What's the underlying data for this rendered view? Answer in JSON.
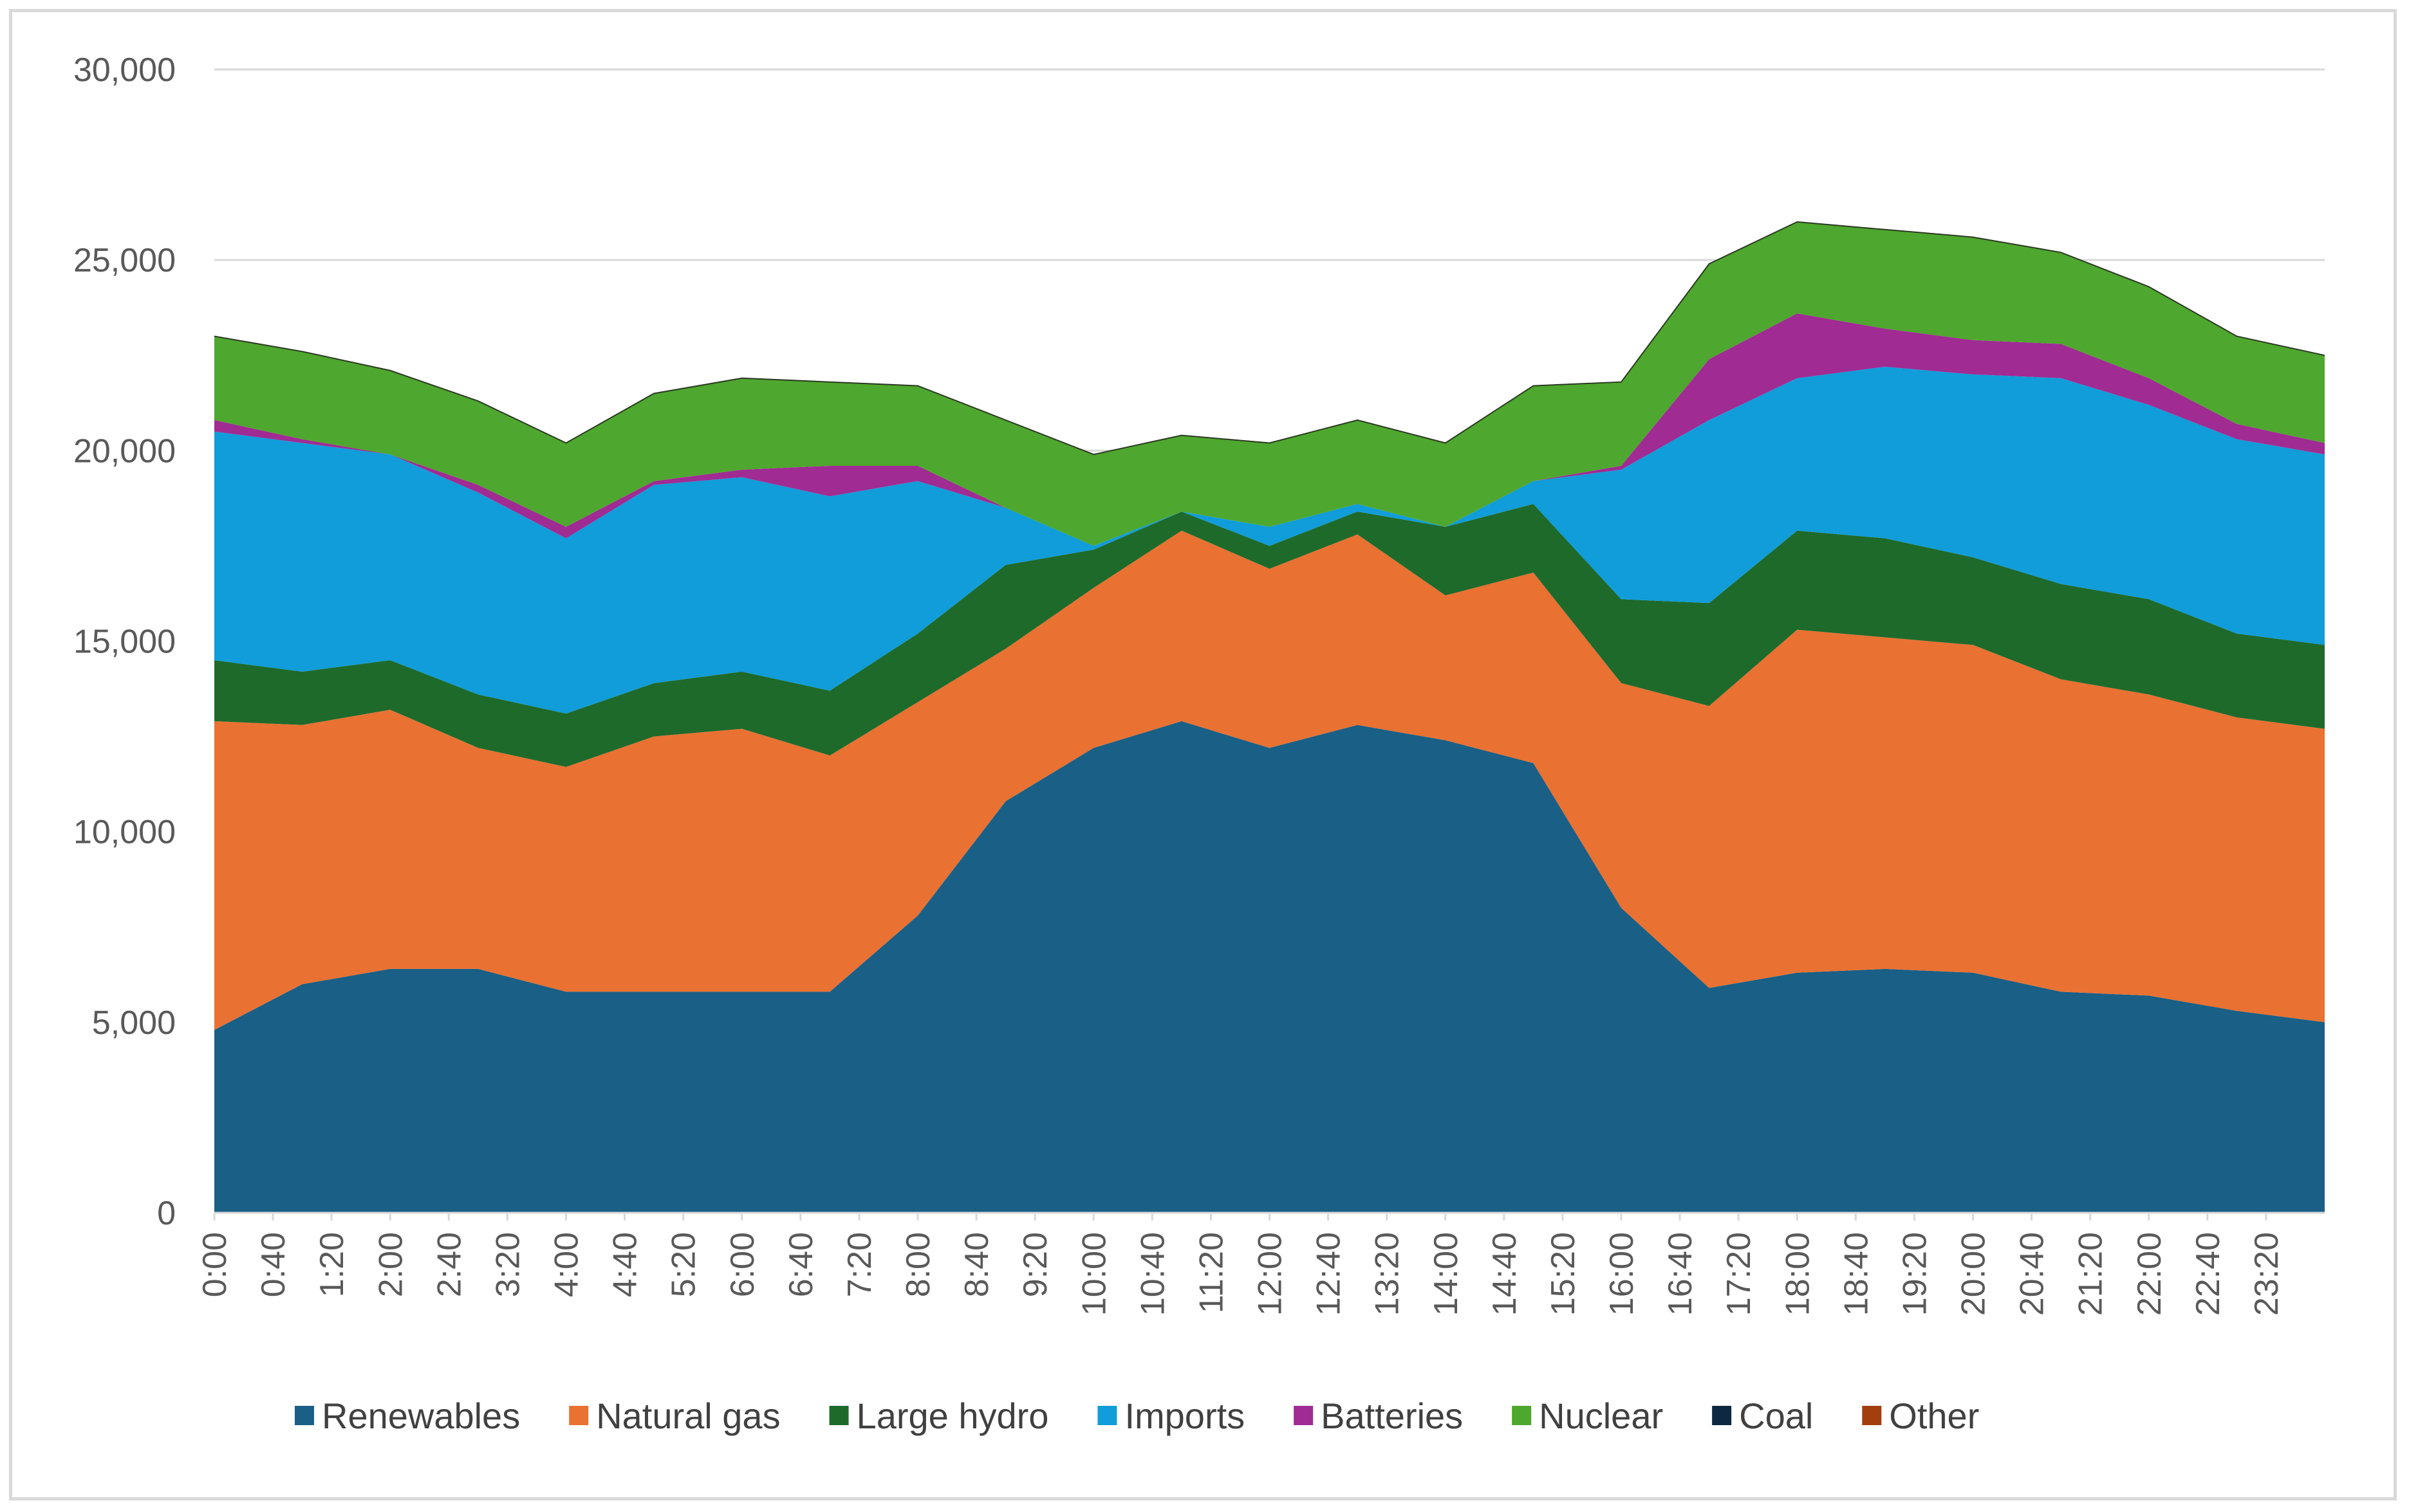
{
  "chart_data": {
    "type": "area",
    "stacked": true,
    "title": "",
    "xlabel": "",
    "ylabel": "",
    "ylim": [
      0,
      30000
    ],
    "y_ticks": [
      0,
      5000,
      10000,
      15000,
      20000,
      25000,
      30000
    ],
    "y_tick_labels": [
      "0",
      "5,000",
      "10,000",
      "15,000",
      "20,000",
      "25,000",
      "30,000"
    ],
    "grid": "horizontal",
    "legend_position": "bottom",
    "x_tick_labels": [
      "0:00",
      "0:40",
      "1:20",
      "2:00",
      "2:40",
      "3:20",
      "4:00",
      "4:40",
      "5:20",
      "6:00",
      "6:40",
      "7:20",
      "8:00",
      "8:40",
      "9:20",
      "10:00",
      "10:40",
      "11:20",
      "12:00",
      "12:40",
      "13:20",
      "14:00",
      "14:40",
      "15:20",
      "16:00",
      "16:40",
      "17:20",
      "18:00",
      "18:40",
      "19:20",
      "20:00",
      "20:40",
      "21:20",
      "22:00",
      "22:40",
      "23:20"
    ],
    "x_hours": [
      0,
      1,
      2,
      3,
      4,
      5,
      6,
      7,
      8,
      9,
      10,
      11,
      12,
      13,
      14,
      15,
      16,
      17,
      18,
      19,
      20,
      21,
      22,
      23,
      24
    ],
    "series": [
      {
        "name": "Renewables",
        "color": "#1a5f85",
        "values": [
          4800,
          6000,
          6400,
          6400,
          5800,
          5800,
          5800,
          5800,
          7800,
          10800,
          12200,
          12900,
          12200,
          12800,
          12400,
          11800,
          8000,
          5900,
          6300,
          6400,
          6300,
          5800,
          5700,
          5300,
          5000
        ]
      },
      {
        "name": "Natural gas",
        "color": "#e97132",
        "values": [
          8100,
          6800,
          6800,
          5800,
          5900,
          6700,
          6900,
          6200,
          5600,
          4000,
          4200,
          5000,
          4700,
          5000,
          3800,
          5000,
          5900,
          7400,
          9000,
          8700,
          8600,
          8200,
          7900,
          7700,
          7700
        ]
      },
      {
        "name": "Large hydro",
        "color": "#1e6a2b",
        "values": [
          1600,
          1400,
          1300,
          1400,
          1400,
          1400,
          1500,
          1700,
          1800,
          2200,
          1000,
          500,
          600,
          600,
          1800,
          1800,
          2200,
          2700,
          2600,
          2600,
          2300,
          2500,
          2500,
          2200,
          2200
        ]
      },
      {
        "name": "Imports",
        "color": "#109dd9",
        "values": [
          6000,
          6000,
          5400,
          5300,
          4600,
          5200,
          5100,
          5100,
          4000,
          1500,
          100,
          0,
          500,
          200,
          0,
          600,
          3400,
          4800,
          4000,
          4500,
          4800,
          5400,
          5100,
          5100,
          5000
        ]
      },
      {
        "name": "Batteries",
        "color": "#a02b93",
        "values": [
          300,
          100,
          0,
          200,
          300,
          100,
          200,
          800,
          400,
          0,
          0,
          0,
          0,
          0,
          0,
          0,
          100,
          1600,
          1700,
          1000,
          900,
          900,
          700,
          400,
          300
        ]
      },
      {
        "name": "Nuclear",
        "color": "#4ea72e",
        "values": [
          2200,
          2300,
          2200,
          2200,
          2200,
          2300,
          2400,
          2200,
          2100,
          2300,
          2400,
          2000,
          2200,
          2200,
          2200,
          2500,
          2200,
          2500,
          2400,
          2600,
          2700,
          2400,
          2400,
          2300,
          2300
        ]
      },
      {
        "name": "Coal",
        "color": "#0e2841",
        "values": [
          0,
          0,
          0,
          0,
          0,
          0,
          0,
          0,
          0,
          0,
          0,
          0,
          0,
          0,
          0,
          0,
          0,
          0,
          0,
          0,
          0,
          0,
          0,
          0,
          0
        ]
      },
      {
        "name": "Other",
        "color": "#a33e0f",
        "values": [
          0,
          0,
          0,
          0,
          0,
          0,
          0,
          0,
          0,
          0,
          0,
          0,
          0,
          0,
          0,
          0,
          0,
          0,
          0,
          0,
          0,
          0,
          0,
          0,
          0
        ]
      }
    ]
  }
}
